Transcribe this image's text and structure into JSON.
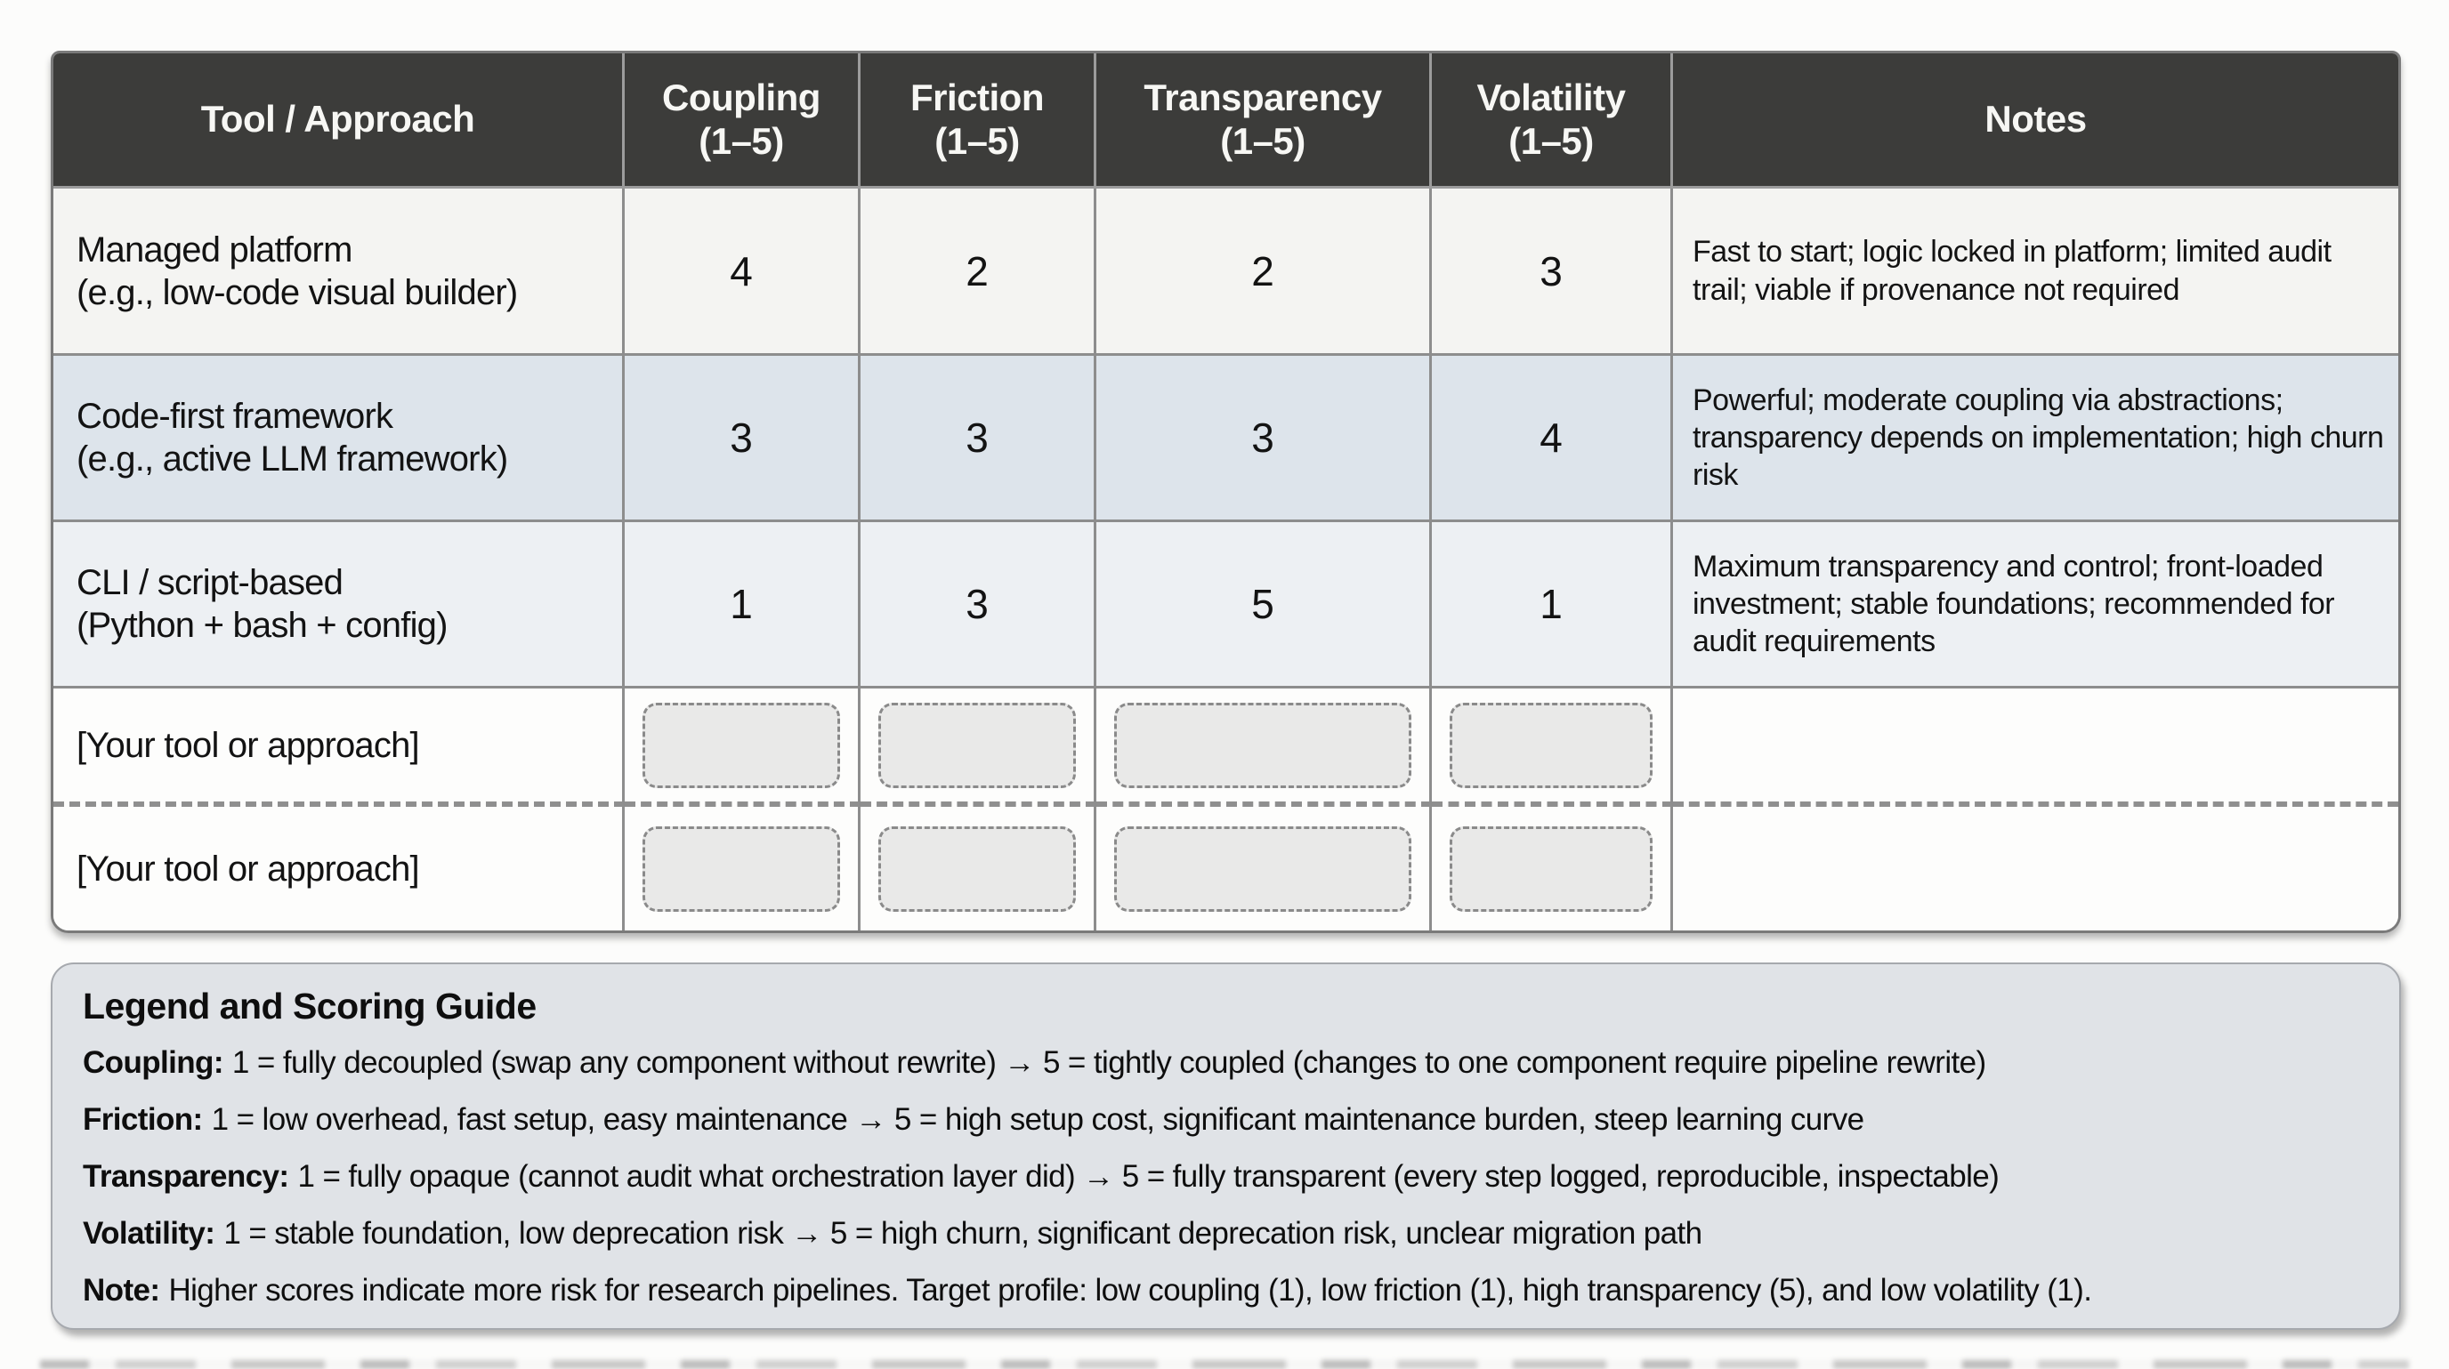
{
  "table": {
    "columns": {
      "tool": {
        "title": "Tool / Approach"
      },
      "coupling": {
        "title": "Coupling",
        "range": "(1–5)"
      },
      "friction": {
        "title": "Friction",
        "range": "(1–5)"
      },
      "transparency": {
        "title": "Transparency",
        "range": "(1–5)"
      },
      "volatility": {
        "title": "Volatility",
        "range": "(1–5)"
      },
      "notes": {
        "title": "Notes"
      }
    },
    "rows": [
      {
        "name": "Managed platform",
        "detail": "(e.g., low-code visual builder)",
        "coupling": "4",
        "friction": "2",
        "transparency": "2",
        "volatility": "3",
        "notes": "Fast to start; logic locked in platform; limited audit trail; viable if provenance not required"
      },
      {
        "name": "Code-first framework",
        "detail": "(e.g., active LLM framework)",
        "coupling": "3",
        "friction": "3",
        "transparency": "3",
        "volatility": "4",
        "notes": "Powerful; moderate coupling via abstractions; transparency depends on implementation; high churn risk"
      },
      {
        "name": "CLI / script-based",
        "detail": "(Python + bash + config)",
        "coupling": "1",
        "friction": "3",
        "transparency": "5",
        "volatility": "1",
        "notes": "Maximum transparency and control; front-loaded investment; stable foundations; recommended for audit requirements"
      }
    ],
    "placeholder_rows": [
      {
        "label": "[Your tool or approach]"
      },
      {
        "label": "[Your tool or approach]"
      }
    ]
  },
  "legend": {
    "title": "Legend and Scoring Guide",
    "entries": [
      {
        "term": "Coupling:",
        "text": "1 = fully decoupled (swap any component without rewrite) → 5 = tightly coupled (changes to one component require pipeline rewrite)"
      },
      {
        "term": "Friction:",
        "text": "1 = low overhead, fast setup, easy maintenance → 5 = high setup cost, significant maintenance burden, steep learning curve"
      },
      {
        "term": "Transparency:",
        "text": "1 = fully opaque (cannot audit what orchestration layer did) → 5 = fully transparent (every step logged, reproducible, inspectable)"
      },
      {
        "term": "Volatility:",
        "text": "1 = stable foundation, low deprecation risk → 5 = high churn, significant deprecation risk, unclear migration path"
      },
      {
        "term": "Note:",
        "text": "Higher scores indicate more risk for research pipelines. Target profile: low coupling (1), low friction (1), high transparency (5), and low volatility (1)."
      }
    ]
  },
  "colors": {
    "header_bg": "#3c3c3a",
    "row_odd_bg": "#f4f4f2",
    "row_even_bg": "#dde4eb",
    "row_three_bg": "#edf0f3",
    "blank_row_bg": "#fdfdfc",
    "grid_line": "#8d8d8d",
    "legend_bg": "#e0e3e7",
    "fillbox_bg": "#e9e9e8"
  }
}
